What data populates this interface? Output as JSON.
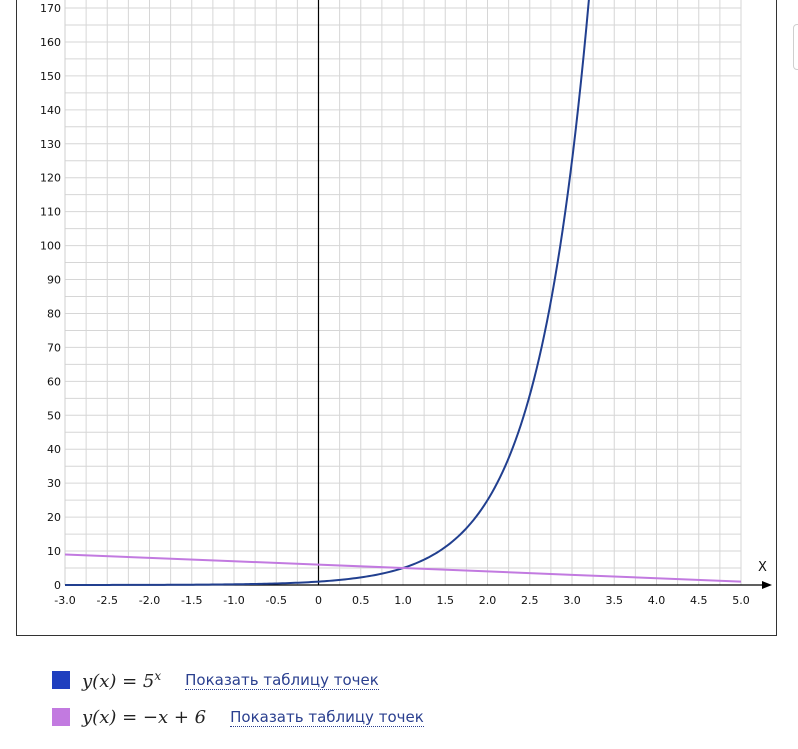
{
  "chart_data": {
    "type": "line",
    "xlabel": "X",
    "ylabel": "",
    "xlim": [
      -3.0,
      5.0
    ],
    "ylim": [
      0,
      170
    ],
    "x_ticks": [
      "-3.0",
      "-2.5",
      "-2.0",
      "-1.5",
      "-1.0",
      "-0.5",
      "0",
      "0.5",
      "1.0",
      "1.5",
      "2.0",
      "2.5",
      "3.0",
      "3.5",
      "4.0",
      "4.5",
      "5.0"
    ],
    "y_ticks": [
      "0",
      "10",
      "20",
      "30",
      "40",
      "50",
      "60",
      "70",
      "80",
      "90",
      "100",
      "110",
      "120",
      "130",
      "140",
      "150",
      "160",
      "170"
    ],
    "grid": true,
    "series": [
      {
        "name": "y(x) = 5^x",
        "color": "#213f8f",
        "x": [
          -3.0,
          -2.5,
          -2.0,
          -1.5,
          -1.0,
          -0.5,
          0,
          0.5,
          1.0,
          1.5,
          2.0,
          2.5,
          3.0,
          3.2
        ],
        "y": [
          0.008,
          0.018,
          0.04,
          0.089,
          0.2,
          0.447,
          1,
          2.236,
          5,
          11.18,
          25,
          55.9,
          125,
          172.5
        ]
      },
      {
        "name": "y(x) = -x + 6",
        "color": "#c27ae0",
        "x": [
          -3.0,
          -2.0,
          -1.0,
          0,
          1.0,
          2.0,
          3.0,
          4.0,
          5.0
        ],
        "y": [
          9,
          8,
          7,
          6,
          5,
          4,
          3,
          2,
          1
        ]
      }
    ]
  },
  "legend": [
    {
      "color": "#1f3fbf",
      "formula_base": "y(x) = 5",
      "formula_exp": "x",
      "link": "Показать таблицу точек"
    },
    {
      "color": "#c27ae0",
      "formula_base": "y(x) = −x + 6",
      "formula_exp": "",
      "link": "Показать таблицу точек"
    }
  ]
}
